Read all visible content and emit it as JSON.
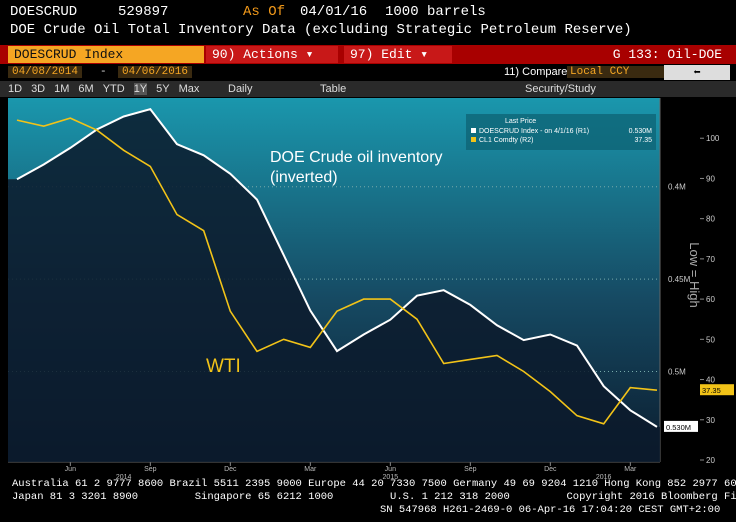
{
  "header": {
    "ticker": "DOESCRUD",
    "code": "529897",
    "as_of_label": "As Of",
    "as_of": "04/01/16",
    "units": "1000 barrels",
    "description": "DOE Crude Oil Total Inventory Data (excluding Strategic Petroleum Reserve)"
  },
  "toolbar": {
    "security": "DOESCRUD Index",
    "actions_key": "90)",
    "actions": "Actions",
    "edit_key": "97)",
    "edit": "Edit",
    "page": "G 133: Oil-DOE",
    "start_date": "04/08/2014",
    "end_date": "04/06/2016",
    "compare_key": "11)",
    "compare": "Compare",
    "currency": "Local CCY",
    "periods": [
      "1D",
      "3D",
      "1M",
      "6M",
      "YTD",
      "1Y",
      "5Y",
      "Max"
    ],
    "frequency": "Daily",
    "table": "Table",
    "study": "Security/Study"
  },
  "chart_data": {
    "type": "line",
    "legend_title": "Last Price",
    "y_axis_label": "Low = High",
    "y_inverted": true,
    "annotations": [
      {
        "text": "DOE Crude oil inventory (inverted)"
      },
      {
        "text": "WTI"
      }
    ],
    "x": [
      "2014-04",
      "2014-05",
      "2014-06",
      "2014-07",
      "2014-08",
      "2014-09",
      "2014-10",
      "2014-11",
      "2014-12",
      "2015-01",
      "2015-02",
      "2015-03",
      "2015-04",
      "2015-05",
      "2015-06",
      "2015-07",
      "2015-08",
      "2015-09",
      "2015-10",
      "2015-11",
      "2015-12",
      "2016-01",
      "2016-02",
      "2016-03",
      "2016-04"
    ],
    "xlim": [
      "2014-04",
      "2016-04"
    ],
    "xticks": [
      {
        "value": "2014-06",
        "label": "Jun"
      },
      {
        "value": "2014-09",
        "label": "Sep"
      },
      {
        "value": "2014-12",
        "label": "Dec"
      },
      {
        "value": "2015-03",
        "label": "Mar"
      },
      {
        "value": "2015-06",
        "label": "Jun"
      },
      {
        "value": "2015-09",
        "label": "Sep"
      },
      {
        "value": "2015-12",
        "label": "Dec"
      },
      {
        "value": "2016-03",
        "label": "Mar"
      }
    ],
    "year_ticks": [
      {
        "value": "2014-08",
        "label": "2014"
      },
      {
        "value": "2015-06",
        "label": "2015"
      },
      {
        "value": "2016-02",
        "label": "2016"
      }
    ],
    "ylim": [
      0.352,
      0.549
    ],
    "yticks": [
      {
        "value": 0.4,
        "label": "0.4M"
      },
      {
        "value": 0.45,
        "label": "0.45M"
      },
      {
        "value": 0.5,
        "label": "0.5M"
      }
    ],
    "y2lim": [
      19.5,
      110
    ],
    "y2ticks": [
      20,
      30,
      40,
      50,
      60,
      70,
      80,
      90,
      100
    ],
    "grid": true,
    "series": [
      {
        "name": "DOESCRUD Index - on 4/1/16 (R1)",
        "color": "#ffffff",
        "values": [
          0.396,
          0.388,
          0.379,
          0.369,
          0.362,
          0.358,
          0.377,
          0.383,
          0.393,
          0.407,
          0.437,
          0.467,
          0.489,
          0.48,
          0.472,
          0.459,
          0.456,
          0.464,
          0.475,
          0.483,
          0.48,
          0.486,
          0.508,
          0.521,
          0.53
        ],
        "value_labels": [
          null,
          null,
          null,
          null,
          null,
          null,
          null,
          null,
          null,
          null,
          null,
          null,
          null,
          null,
          null,
          null,
          null,
          null,
          null,
          null,
          null,
          null,
          null,
          null,
          "0.530M"
        ]
      },
      {
        "name": "CL1 Comdty (R2)",
        "color": "#f2c318",
        "axis": "y2",
        "values": [
          104.5,
          103,
          105,
          102,
          97,
          93,
          81,
          77,
          57,
          47,
          50,
          48,
          57,
          60,
          60,
          55,
          44,
          45,
          46,
          42,
          37,
          31,
          29,
          38,
          37.35
        ]
      }
    ]
  },
  "footer": {
    "line1": "Australia 61 2 9777 8600 Brazil 5511 2395 9000 Europe 44 20 7330 7500 Germany 49 69 9204 1210 Hong Kong 852 2977 6000",
    "line2": "Japan 81 3 3201 8900         Singapore 65 6212 1000         U.S. 1 212 318 2000         Copyright 2016 Bloomberg Finance L.P.",
    "line3": "SN 547968 H261-2469-0 06-Apr-16 17:04:20 CEST GMT+2:00"
  }
}
